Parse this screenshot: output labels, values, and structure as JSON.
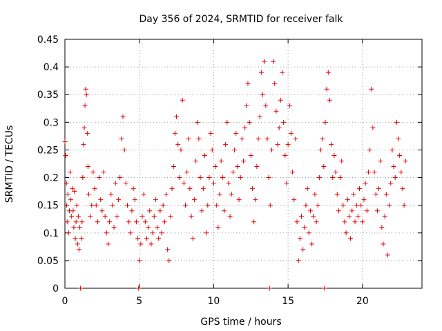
{
  "chart_data": {
    "type": "scatter",
    "title": "Day 356 of 2024, SRMTID for receiver falk",
    "xlabel": "GPS time / hours",
    "ylabel": "SRMTID / TECUs",
    "xlim": [
      0,
      24
    ],
    "ylim": [
      0,
      0.45
    ],
    "x_ticks": [
      0,
      5,
      10,
      15,
      20
    ],
    "y_ticks": [
      0,
      0.05,
      0.1,
      0.15,
      0.2,
      0.25,
      0.3,
      0.35,
      0.4,
      0.45
    ],
    "x_tick_labels": [
      "0",
      "5",
      "10",
      "15",
      "20"
    ],
    "y_tick_labels": [
      "0",
      "0.05",
      "0.1",
      "0.15",
      "0.2",
      "0.25",
      "0.3",
      "0.35",
      "0.4",
      "0.45"
    ],
    "grid": true,
    "marker": "+",
    "marker_color": "#e00000",
    "series": [
      {
        "points": [
          [
            0.0,
            0.265
          ],
          [
            0.05,
            0.24
          ],
          [
            0.1,
            0.19
          ],
          [
            0.12,
            0.15
          ],
          [
            0.15,
            0.12
          ],
          [
            0.2,
            0.17
          ],
          [
            0.25,
            0.1
          ],
          [
            0.3,
            0.14
          ],
          [
            0.35,
            0.21
          ],
          [
            0.4,
            0.16
          ],
          [
            0.45,
            0.13
          ],
          [
            0.5,
            0.18
          ],
          [
            0.55,
            0.14
          ],
          [
            0.6,
            0.11
          ],
          [
            0.65,
            0.175
          ],
          [
            0.7,
            0.09
          ],
          [
            0.75,
            0.12
          ],
          [
            0.8,
            0.15
          ],
          [
            0.85,
            0.08
          ],
          [
            0.9,
            0.13
          ],
          [
            0.95,
            0.07
          ],
          [
            1.0,
            0.11
          ],
          [
            1.05,
            0.0
          ],
          [
            1.1,
            0.09
          ],
          [
            1.15,
            0.12
          ],
          [
            1.2,
            0.2
          ],
          [
            1.25,
            0.26
          ],
          [
            1.3,
            0.29
          ],
          [
            1.35,
            0.33
          ],
          [
            1.4,
            0.36
          ],
          [
            1.45,
            0.35
          ],
          [
            1.5,
            0.28
          ],
          [
            1.55,
            0.22
          ],
          [
            1.6,
            0.17
          ],
          [
            1.7,
            0.13
          ],
          [
            1.8,
            0.15
          ],
          [
            1.9,
            0.21
          ],
          [
            2.0,
            0.18
          ],
          [
            2.1,
            0.15
          ],
          [
            2.2,
            0.12
          ],
          [
            2.3,
            0.2
          ],
          [
            2.4,
            0.16
          ],
          [
            2.5,
            0.14
          ],
          [
            2.6,
            0.21
          ],
          [
            2.7,
            0.13
          ],
          [
            2.8,
            0.1
          ],
          [
            2.9,
            0.08
          ],
          [
            3.0,
            0.12
          ],
          [
            3.1,
            0.17
          ],
          [
            3.2,
            0.15
          ],
          [
            3.3,
            0.11
          ],
          [
            3.4,
            0.19
          ],
          [
            3.5,
            0.13
          ],
          [
            3.6,
            0.16
          ],
          [
            3.7,
            0.2
          ],
          [
            3.8,
            0.27
          ],
          [
            3.9,
            0.31
          ],
          [
            4.0,
            0.25
          ],
          [
            4.1,
            0.19
          ],
          [
            4.2,
            0.15
          ],
          [
            4.3,
            0.12
          ],
          [
            4.4,
            0.1
          ],
          [
            4.5,
            0.14
          ],
          [
            4.6,
            0.18
          ],
          [
            4.7,
            0.16
          ],
          [
            4.8,
            0.12
          ],
          [
            4.9,
            0.09
          ],
          [
            4.95,
            0.0
          ],
          [
            5.0,
            0.05
          ],
          [
            5.1,
            0.08
          ],
          [
            5.2,
            0.13
          ],
          [
            5.3,
            0.17
          ],
          [
            5.4,
            0.12
          ],
          [
            5.5,
            0.09
          ],
          [
            5.6,
            0.11
          ],
          [
            5.7,
            0.14
          ],
          [
            5.8,
            0.08
          ],
          [
            5.9,
            0.1
          ],
          [
            6.0,
            0.13
          ],
          [
            6.1,
            0.16
          ],
          [
            6.2,
            0.11
          ],
          [
            6.3,
            0.09
          ],
          [
            6.4,
            0.14
          ],
          [
            6.5,
            0.1
          ],
          [
            6.6,
            0.15
          ],
          [
            6.7,
            0.12
          ],
          [
            6.8,
            0.17
          ],
          [
            6.9,
            0.07
          ],
          [
            7.0,
            0.05
          ],
          [
            7.1,
            0.13
          ],
          [
            7.2,
            0.18
          ],
          [
            7.3,
            0.22
          ],
          [
            7.4,
            0.28
          ],
          [
            7.5,
            0.31
          ],
          [
            7.6,
            0.26
          ],
          [
            7.7,
            0.2
          ],
          [
            7.8,
            0.25
          ],
          [
            7.9,
            0.34
          ],
          [
            8.0,
            0.19
          ],
          [
            8.1,
            0.15
          ],
          [
            8.2,
            0.21
          ],
          [
            8.3,
            0.27
          ],
          [
            8.4,
            0.18
          ],
          [
            8.5,
            0.13
          ],
          [
            8.6,
            0.09
          ],
          [
            8.7,
            0.16
          ],
          [
            8.8,
            0.23
          ],
          [
            8.9,
            0.3
          ],
          [
            9.0,
            0.27
          ],
          [
            9.1,
            0.2
          ],
          [
            9.2,
            0.14
          ],
          [
            9.3,
            0.18
          ],
          [
            9.4,
            0.24
          ],
          [
            9.5,
            0.1
          ],
          [
            9.6,
            0.15
          ],
          [
            9.7,
            0.2
          ],
          [
            9.8,
            0.28
          ],
          [
            9.9,
            0.25
          ],
          [
            10.0,
            0.19
          ],
          [
            10.1,
            0.22
          ],
          [
            10.2,
            0.15
          ],
          [
            10.3,
            0.11
          ],
          [
            10.4,
            0.17
          ],
          [
            10.5,
            0.23
          ],
          [
            10.6,
            0.2
          ],
          [
            10.7,
            0.14
          ],
          [
            10.8,
            0.26
          ],
          [
            10.9,
            0.3
          ],
          [
            11.0,
            0.19
          ],
          [
            11.1,
            0.13
          ],
          [
            11.2,
            0.17
          ],
          [
            11.3,
            0.21
          ],
          [
            11.4,
            0.25
          ],
          [
            11.5,
            0.28
          ],
          [
            11.6,
            0.22
          ],
          [
            11.7,
            0.16
          ],
          [
            11.8,
            0.2
          ],
          [
            11.9,
            0.27
          ],
          [
            12.0,
            0.23
          ],
          [
            12.1,
            0.29
          ],
          [
            12.2,
            0.33
          ],
          [
            12.3,
            0.37
          ],
          [
            12.4,
            0.3
          ],
          [
            12.5,
            0.24
          ],
          [
            12.6,
            0.18
          ],
          [
            12.7,
            0.12
          ],
          [
            12.8,
            0.16
          ],
          [
            12.9,
            0.22
          ],
          [
            13.0,
            0.27
          ],
          [
            13.1,
            0.31
          ],
          [
            13.2,
            0.39
          ],
          [
            13.3,
            0.35
          ],
          [
            13.4,
            0.41
          ],
          [
            13.5,
            0.33
          ],
          [
            13.6,
            0.27
          ],
          [
            13.7,
            0.2
          ],
          [
            13.75,
            0.0
          ],
          [
            13.8,
            0.15
          ],
          [
            13.9,
            0.25
          ],
          [
            14.0,
            0.41
          ],
          [
            14.1,
            0.37
          ],
          [
            14.2,
            0.32
          ],
          [
            14.3,
            0.26
          ],
          [
            14.4,
            0.29
          ],
          [
            14.5,
            0.34
          ],
          [
            14.6,
            0.39
          ],
          [
            14.7,
            0.3
          ],
          [
            14.8,
            0.24
          ],
          [
            14.9,
            0.19
          ],
          [
            15.0,
            0.26
          ],
          [
            15.1,
            0.33
          ],
          [
            15.2,
            0.28
          ],
          [
            15.3,
            0.21
          ],
          [
            15.4,
            0.16
          ],
          [
            15.5,
            0.27
          ],
          [
            15.6,
            0.12
          ],
          [
            15.7,
            0.05
          ],
          [
            15.8,
            0.09
          ],
          [
            15.9,
            0.13
          ],
          [
            16.0,
            0.07
          ],
          [
            16.1,
            0.11
          ],
          [
            16.2,
            0.15
          ],
          [
            16.3,
            0.18
          ],
          [
            16.4,
            0.1
          ],
          [
            16.5,
            0.14
          ],
          [
            16.6,
            0.08
          ],
          [
            16.7,
            0.13
          ],
          [
            16.8,
            0.17
          ],
          [
            16.9,
            0.12
          ],
          [
            17.0,
            0.15
          ],
          [
            17.1,
            0.2
          ],
          [
            17.2,
            0.25
          ],
          [
            17.3,
            0.27
          ],
          [
            17.4,
            0.22
          ],
          [
            17.45,
            0.0
          ],
          [
            17.5,
            0.3
          ],
          [
            17.6,
            0.36
          ],
          [
            17.7,
            0.39
          ],
          [
            17.8,
            0.34
          ],
          [
            17.9,
            0.26
          ],
          [
            18.0,
            0.2
          ],
          [
            18.1,
            0.24
          ],
          [
            18.2,
            0.21
          ],
          [
            18.3,
            0.17
          ],
          [
            18.4,
            0.14
          ],
          [
            18.5,
            0.2
          ],
          [
            18.6,
            0.23
          ],
          [
            18.7,
            0.15
          ],
          [
            18.8,
            0.12
          ],
          [
            18.9,
            0.1
          ],
          [
            19.0,
            0.16
          ],
          [
            19.1,
            0.13
          ],
          [
            19.2,
            0.09
          ],
          [
            19.3,
            0.14
          ],
          [
            19.4,
            0.17
          ],
          [
            19.5,
            0.12
          ],
          [
            19.6,
            0.15
          ],
          [
            19.7,
            0.13
          ],
          [
            19.8,
            0.18
          ],
          [
            19.9,
            0.15
          ],
          [
            20.0,
            0.12
          ],
          [
            20.1,
            0.16
          ],
          [
            20.2,
            0.19
          ],
          [
            20.3,
            0.14
          ],
          [
            20.4,
            0.21
          ],
          [
            20.5,
            0.25
          ],
          [
            20.6,
            0.36
          ],
          [
            20.7,
            0.29
          ],
          [
            20.8,
            0.21
          ],
          [
            20.9,
            0.17
          ],
          [
            21.0,
            0.14
          ],
          [
            21.1,
            0.18
          ],
          [
            21.2,
            0.23
          ],
          [
            21.3,
            0.11
          ],
          [
            21.4,
            0.08
          ],
          [
            21.5,
            0.13
          ],
          [
            21.6,
            0.17
          ],
          [
            21.7,
            0.06
          ],
          [
            21.8,
            0.15
          ],
          [
            21.9,
            0.19
          ],
          [
            22.0,
            0.25
          ],
          [
            22.1,
            0.22
          ],
          [
            22.2,
            0.2
          ],
          [
            22.3,
            0.3
          ],
          [
            22.4,
            0.27
          ],
          [
            22.5,
            0.24
          ],
          [
            22.6,
            0.21
          ],
          [
            22.7,
            0.18
          ],
          [
            22.8,
            0.15
          ],
          [
            22.9,
            0.23
          ]
        ]
      }
    ]
  }
}
